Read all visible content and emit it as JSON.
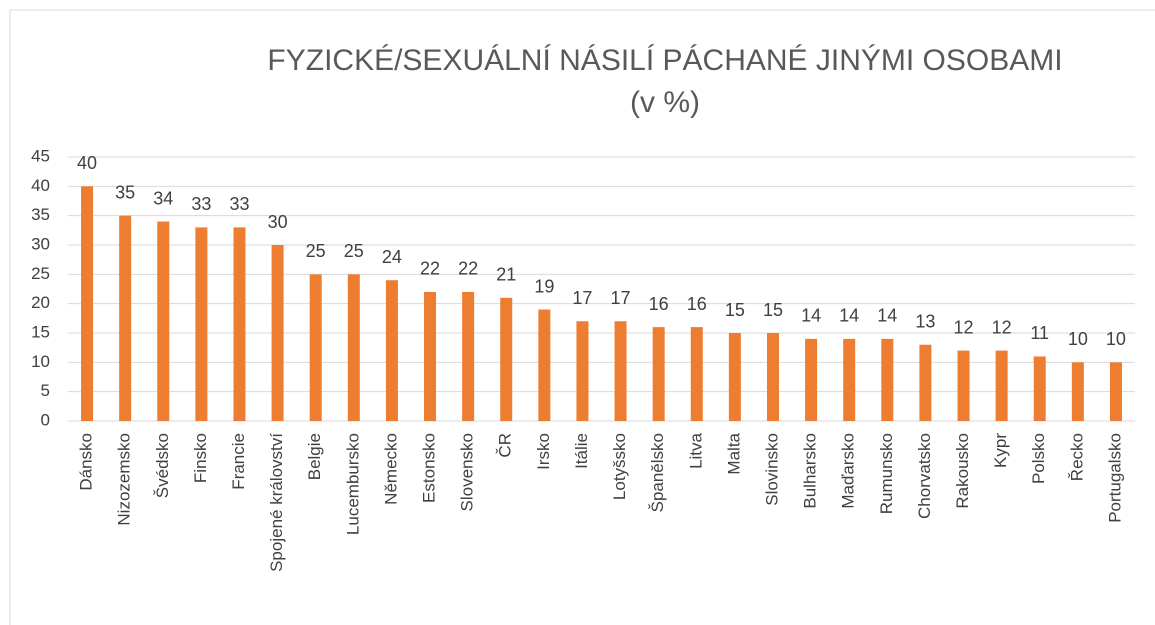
{
  "chart_data": {
    "type": "bar",
    "title": "FYZICKÉ/SEXUÁLNÍ NÁSILÍ PÁCHANÉ JINÝMI OSOBAMI",
    "subtitle": "(v %)",
    "categories": [
      "Dánsko",
      "Nizozemsko",
      "Švédsko",
      "Finsko",
      "Francie",
      "Spojené království",
      "Belgie",
      "Lucembursko",
      "Německo",
      "Estonsko",
      "Slovensko",
      "ČR",
      "Irsko",
      "Itálie",
      "Lotyšsko",
      "Španělsko",
      "Litva",
      "Malta",
      "Slovinsko",
      "Bulharsko",
      "Maďarsko",
      "Rumunsko",
      "Chorvatsko",
      "Rakousko",
      "Kypr",
      "Polsko",
      "Řecko",
      "Portugalsko"
    ],
    "values": [
      40,
      35,
      34,
      33,
      33,
      30,
      25,
      25,
      24,
      22,
      22,
      21,
      19,
      17,
      17,
      16,
      16,
      15,
      15,
      14,
      14,
      14,
      13,
      12,
      12,
      11,
      10,
      10
    ],
    "color": "#ed7d31",
    "ylim": [
      0,
      45
    ],
    "yticks": [
      0,
      5,
      10,
      15,
      20,
      25,
      30,
      35,
      40,
      45
    ],
    "grid": true
  }
}
